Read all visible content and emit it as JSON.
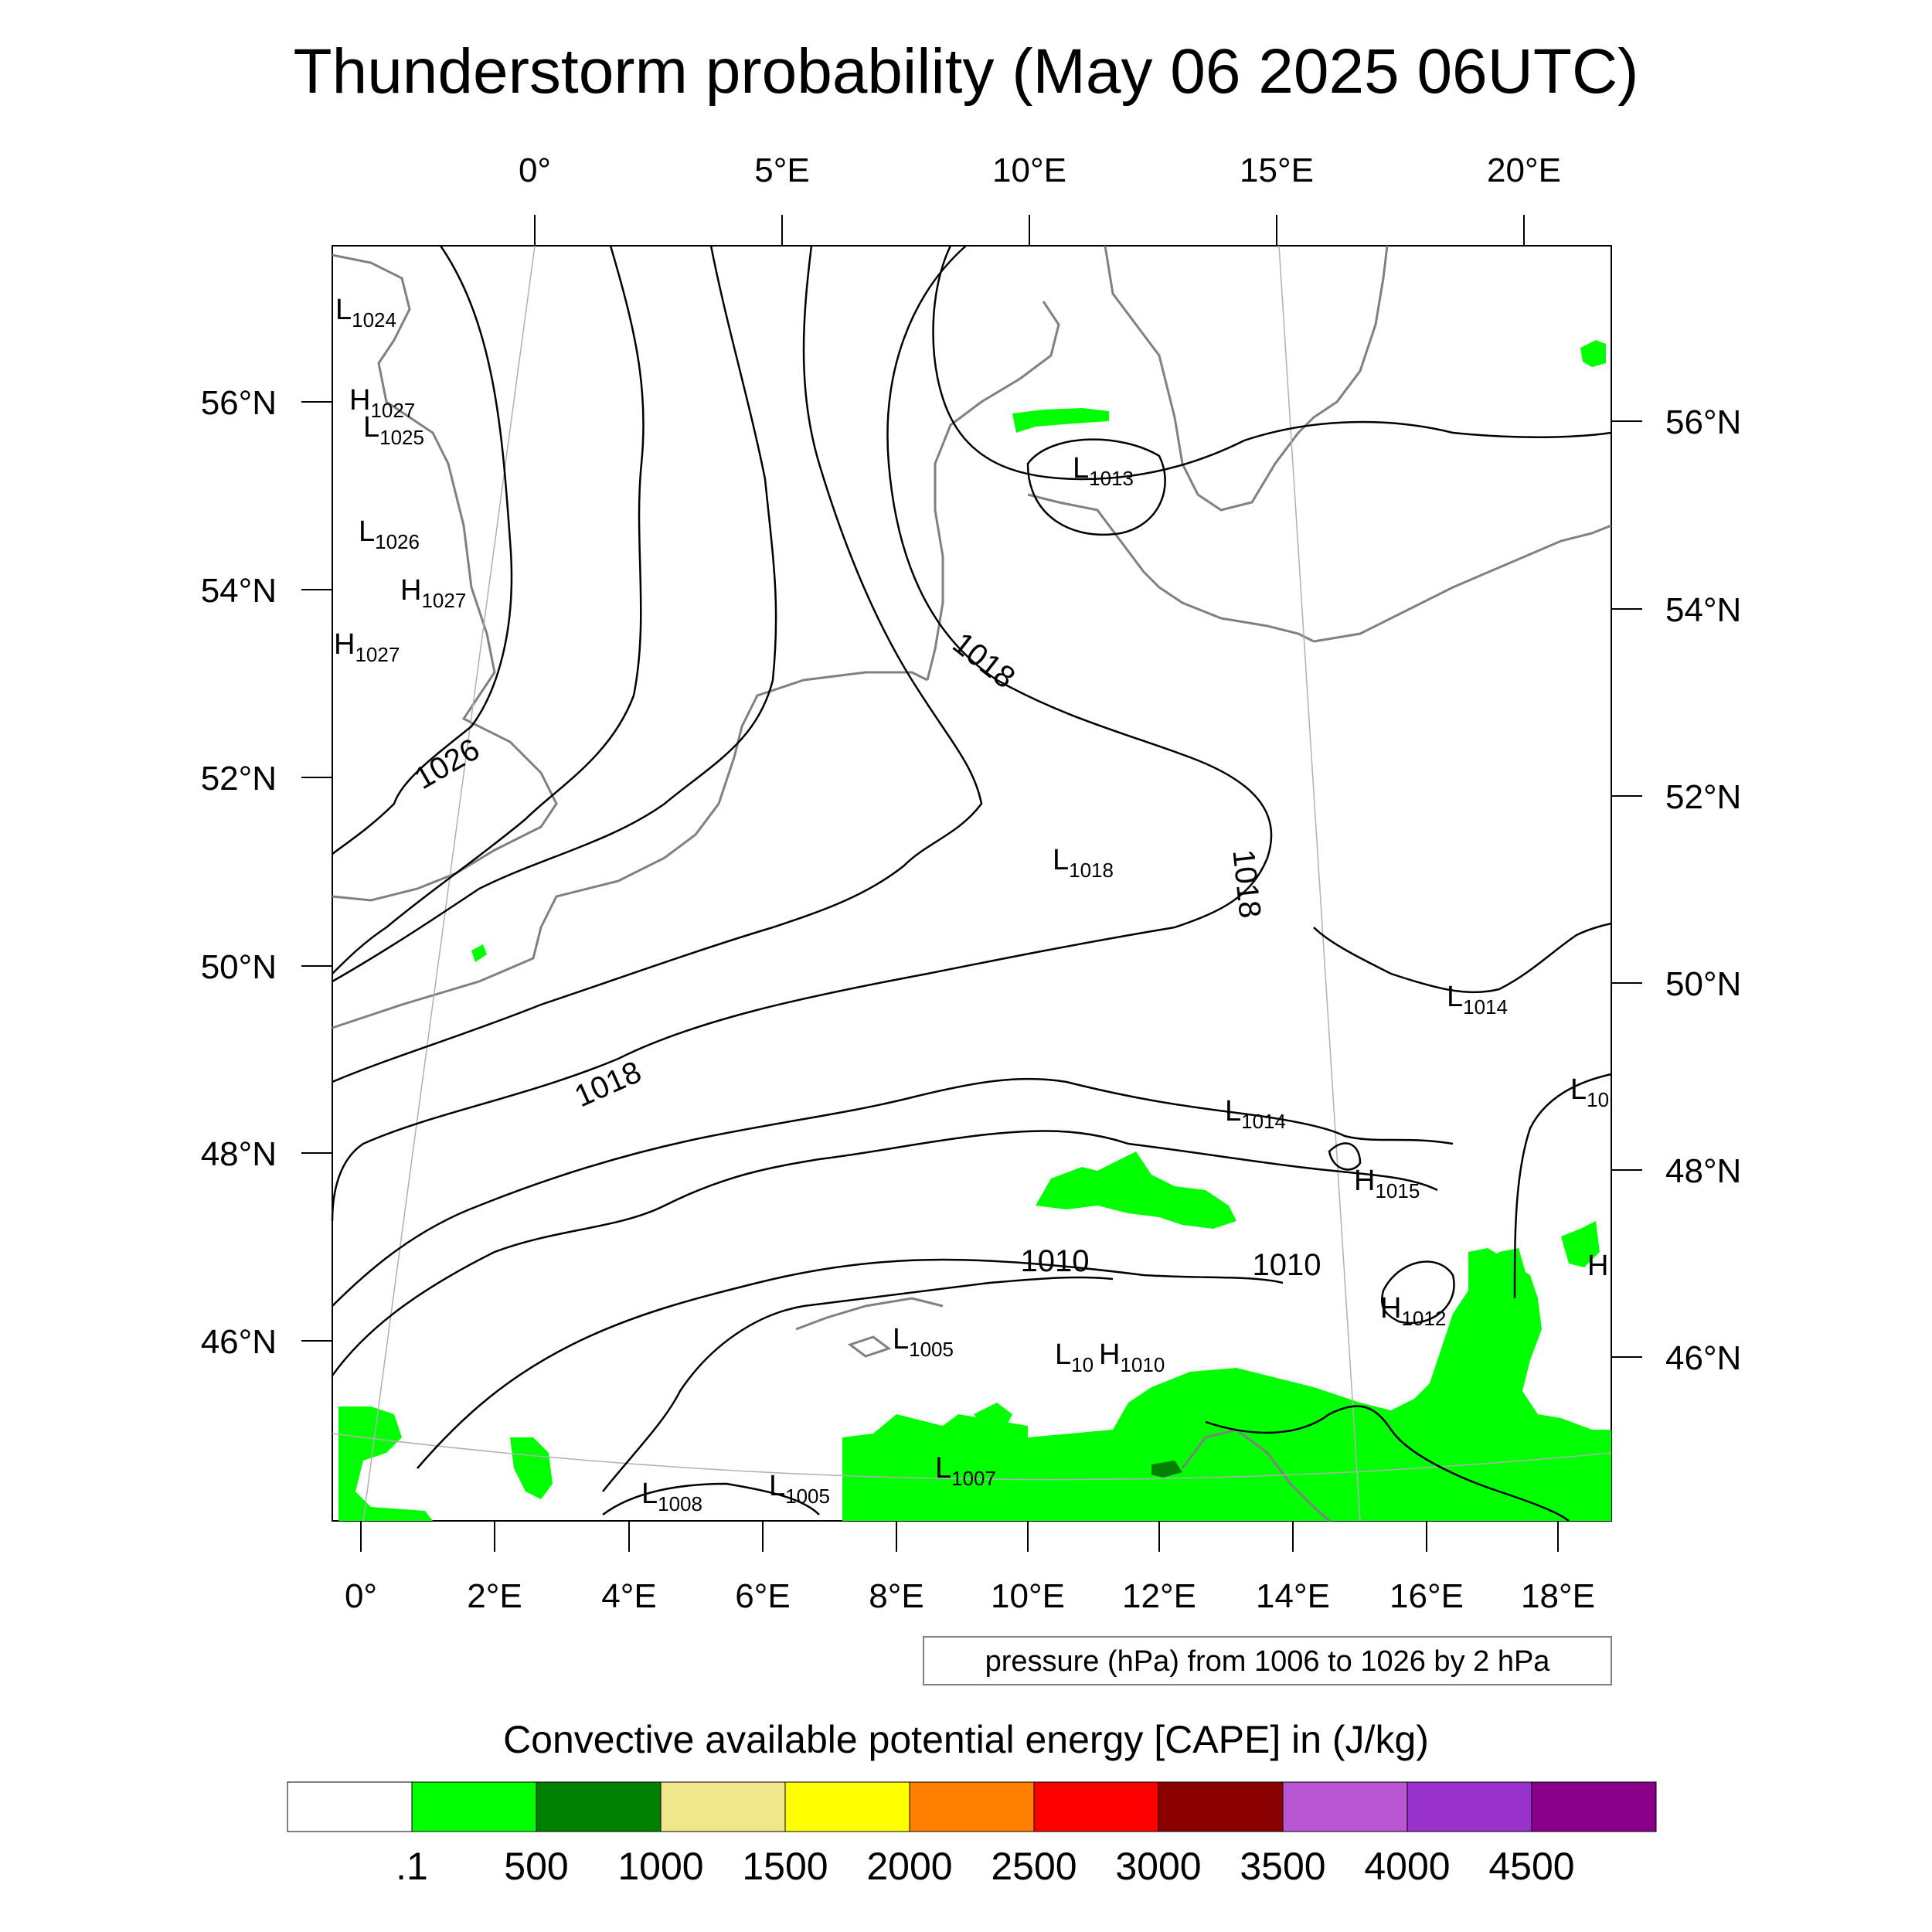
{
  "title": "Thunderstorm probability (May 06 2025 06UTC)",
  "top_axis_labels": [
    "0°",
    "5°E",
    "10°E",
    "15°E",
    "20°E"
  ],
  "bottom_axis_labels": [
    "0°",
    "2°E",
    "4°E",
    "6°E",
    "8°E",
    "10°E",
    "12°E",
    "14°E",
    "16°E",
    "18°E"
  ],
  "left_axis_labels": [
    "56°N",
    "54°N",
    "52°N",
    "50°N",
    "48°N",
    "46°N"
  ],
  "right_axis_labels": [
    "56°N",
    "54°N",
    "52°N",
    "50°N",
    "48°N",
    "46°N"
  ],
  "pressure_centers": [
    {
      "type": "L",
      "value": "1024"
    },
    {
      "type": "H",
      "value": "1027"
    },
    {
      "type": "L",
      "value": "1025"
    },
    {
      "type": "L",
      "value": "1026"
    },
    {
      "type": "H",
      "value": "1027"
    },
    {
      "type": "H",
      "value": "1027"
    },
    {
      "type": "L",
      "value": "1013"
    },
    {
      "type": "L",
      "value": "1018"
    },
    {
      "type": "L",
      "value": "1014"
    },
    {
      "type": "L",
      "value": "1014"
    },
    {
      "type": "L",
      "value": "10"
    },
    {
      "type": "H",
      "value": "1015"
    },
    {
      "type": "H",
      "value": "1012"
    },
    {
      "type": "H",
      "value": ""
    },
    {
      "type": "L",
      "value": "1005"
    },
    {
      "type": "L",
      "value": "10"
    },
    {
      "type": "H",
      "value": "1010"
    },
    {
      "type": "L",
      "value": "1008"
    },
    {
      "type": "L",
      "value": "1005"
    },
    {
      "type": "L",
      "value": "1007"
    }
  ],
  "contour_labels": [
    "1026",
    "1018",
    "1018",
    "1018",
    "1010",
    "1010"
  ],
  "contour_info": "pressure (hPa) from 1006 to 1026 by 2 hPa",
  "colorbar": {
    "title": "Convective available potential energy [CAPE] in (J/kg)",
    "colors": [
      "#ffffff",
      "#00ff00",
      "#008000",
      "#f0e68c",
      "#ffff00",
      "#ff8000",
      "#ff0000",
      "#8b0000",
      "#ba55d3",
      "#9932cc",
      "#8b008b"
    ],
    "labels": [
      ".1",
      "500",
      "1000",
      "1500",
      "2000",
      "2500",
      "3000",
      "3500",
      "4000",
      "4500"
    ]
  }
}
